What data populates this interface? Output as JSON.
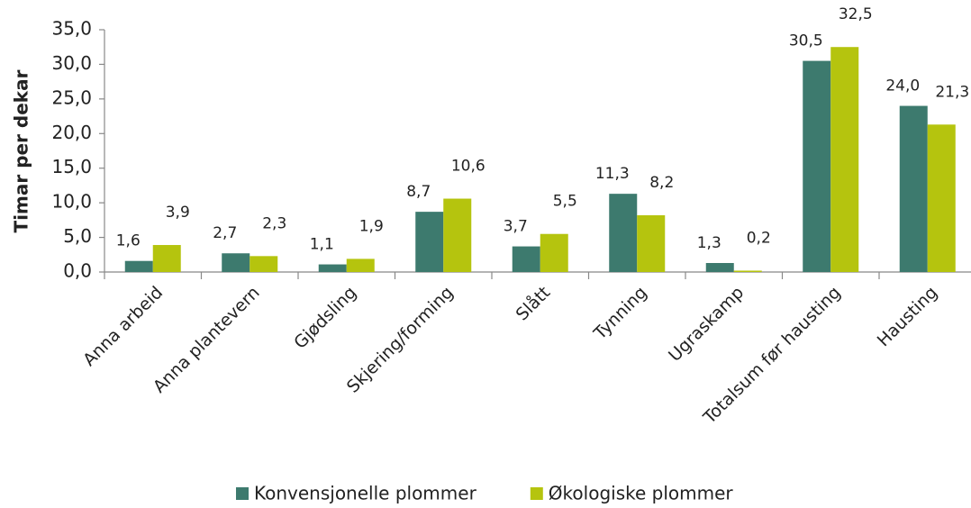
{
  "chart_data": {
    "type": "bar",
    "y_label": "Timar per dekar",
    "categories": [
      "Anna arbeid",
      "Anna plantevern",
      "Gjødsling",
      "Skjering/forming",
      "Slått",
      "Tynning",
      "Ugraskamp",
      "Totalsum før hausting",
      "Hausting"
    ],
    "series": [
      {
        "name": "Konvensjonelle plommer",
        "color": "#3d7a6e",
        "values": [
          1.6,
          2.7,
          1.1,
          8.7,
          3.7,
          11.3,
          1.3,
          30.5,
          24.0
        ],
        "value_labels": [
          "1,6",
          "2,7",
          "1,1",
          "8,7",
          "3,7",
          "11,3",
          "1,3",
          "30,5",
          "24,0"
        ]
      },
      {
        "name": "Økologiske plommer",
        "color": "#b5c40e",
        "values": [
          3.9,
          2.3,
          1.9,
          10.6,
          5.5,
          8.2,
          0.2,
          32.5,
          21.3
        ],
        "value_labels": [
          "3,9",
          "2,3",
          "1,9",
          "10,6",
          "5,5",
          "8,2",
          "0,2",
          "32,5",
          "21,3"
        ]
      }
    ],
    "ylim": [
      0,
      35
    ],
    "yticks": [
      {
        "value": 0,
        "label": "0,0"
      },
      {
        "value": 5,
        "label": "5,0"
      },
      {
        "value": 10,
        "label": "10,0"
      },
      {
        "value": 15,
        "label": "15,0"
      },
      {
        "value": 20,
        "label": "20,0"
      },
      {
        "value": 25,
        "label": "25,0"
      },
      {
        "value": 30,
        "label": "30,0"
      },
      {
        "value": 35,
        "label": "35,0"
      }
    ],
    "legend": "bottom"
  }
}
